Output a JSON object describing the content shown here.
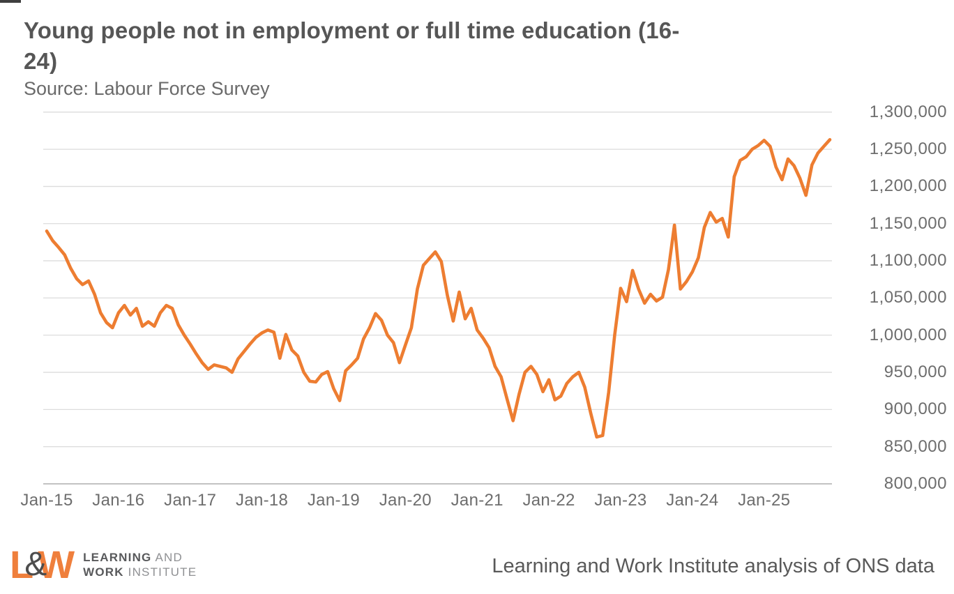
{
  "header": {
    "title_line1": "Young people not in employment or full time education (16-",
    "title_line2": "24)",
    "source": "Source: Labour Force Survey"
  },
  "chart_data": {
    "type": "line",
    "title": "Young people not in employment or full time education (16-24)",
    "subtitle": "Source: Labour Force Survey",
    "series_name": "Young people not in employment or full time education (16-24)",
    "frequency": "monthly",
    "start_month": "Jan-15",
    "x_tick_labels": [
      "Jan-15",
      "Jan-16",
      "Jan-17",
      "Jan-18",
      "Jan-19",
      "Jan-20",
      "Jan-21",
      "Jan-22",
      "Jan-23",
      "Jan-24",
      "Jan-25"
    ],
    "y_tick_labels": [
      "1,300,000",
      "1,250,000",
      "1,200,000",
      "1,150,000",
      "1,100,000",
      "1,050,000",
      "1,000,000",
      "950,000",
      "900,000",
      "850,000",
      "800,000"
    ],
    "ylim": [
      800000,
      1300000
    ],
    "grid": "horizontal",
    "legend": "none",
    "line_color": "#ED7D31",
    "values": [
      1140000,
      1127000,
      1118000,
      1108000,
      1090000,
      1076000,
      1068000,
      1073000,
      1055000,
      1030000,
      1017000,
      1010000,
      1030000,
      1040000,
      1027000,
      1036000,
      1012000,
      1018000,
      1012000,
      1030000,
      1040000,
      1036000,
      1014000,
      1000000,
      988000,
      975000,
      963000,
      954000,
      960000,
      958000,
      956000,
      950000,
      968000,
      978000,
      988000,
      997000,
      1003000,
      1007000,
      1004000,
      969000,
      1001000,
      980000,
      972000,
      950000,
      938000,
      937000,
      947000,
      951000,
      928000,
      912000,
      952000,
      960000,
      969000,
      995000,
      1010000,
      1029000,
      1020000,
      1000000,
      990000,
      963000,
      987000,
      1010000,
      1062000,
      1094000,
      1103000,
      1112000,
      1099000,
      1054000,
      1019000,
      1058000,
      1022000,
      1036000,
      1007000,
      996000,
      983000,
      958000,
      944000,
      914000,
      885000,
      920000,
      950000,
      958000,
      947000,
      924000,
      940000,
      913000,
      918000,
      935000,
      944000,
      950000,
      930000,
      895000,
      863000,
      865000,
      923000,
      1000000,
      1063000,
      1045000,
      1087000,
      1062000,
      1043000,
      1055000,
      1046000,
      1051000,
      1088000,
      1148000,
      1062000,
      1072000,
      1085000,
      1104000,
      1145000,
      1165000,
      1152000,
      1157000,
      1132000,
      1213000,
      1235000,
      1240000,
      1250000,
      1255000,
      1262000,
      1254000,
      1226000,
      1209000,
      1237000,
      1228000,
      1211000,
      1188000,
      1229000,
      1245000,
      1254000,
      1263000
    ]
  },
  "footer": {
    "logo": {
      "l": "L",
      "amp": "&",
      "w": "W",
      "line1_bold": "LEARNING",
      "line1_rest": " AND",
      "line2_bold": "WORK",
      "line2_rest": " INSTITUTE"
    },
    "attribution": "Learning and Work Institute analysis of ONS data"
  },
  "colors": {
    "line": "#ED7D31",
    "gridline": "#DCDCDC",
    "axis_line": "#C2C2C2",
    "title_text": "#565656",
    "label_text": "#6D6D6D"
  }
}
